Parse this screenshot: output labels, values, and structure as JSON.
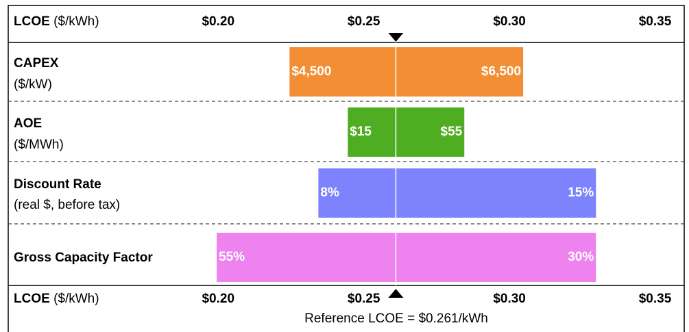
{
  "chart_data": {
    "type": "tornado",
    "axis_label": "LCOE",
    "axis_unit": "($/kWh)",
    "xlim": [
      0.195,
      0.36
    ],
    "xticks": [
      {
        "value": 0.2,
        "label": "$0.20"
      },
      {
        "value": 0.25,
        "label": "$0.25"
      },
      {
        "value": 0.3,
        "label": "$0.30"
      },
      {
        "value": 0.35,
        "label": "$0.35"
      }
    ],
    "reference": 0.261,
    "reference_label": "Reference LCOE = $0.261/kWh",
    "categories": [
      "CAPEX",
      "AOE",
      "Discount Rate",
      "Gross Capacity Factor"
    ],
    "category_units": [
      "($/kW)",
      "($/MWh)",
      "(real $, before tax)",
      null
    ],
    "bars": [
      {
        "left": 0.2245,
        "right": 0.3047,
        "left_label": "$4,500",
        "right_label": "$6,500",
        "color": "#f28e34"
      },
      {
        "left": 0.2445,
        "right": 0.2845,
        "left_label": "$15",
        "right_label": "$55",
        "color": "#4fad22"
      },
      {
        "left": 0.2344,
        "right": 0.3297,
        "left_label": "8%",
        "right_label": "15%",
        "color": "#7c83fc"
      },
      {
        "left": 0.1995,
        "right": 0.3297,
        "left_label": "55%",
        "right_label": "30%",
        "color": "#ee82ee"
      }
    ]
  }
}
